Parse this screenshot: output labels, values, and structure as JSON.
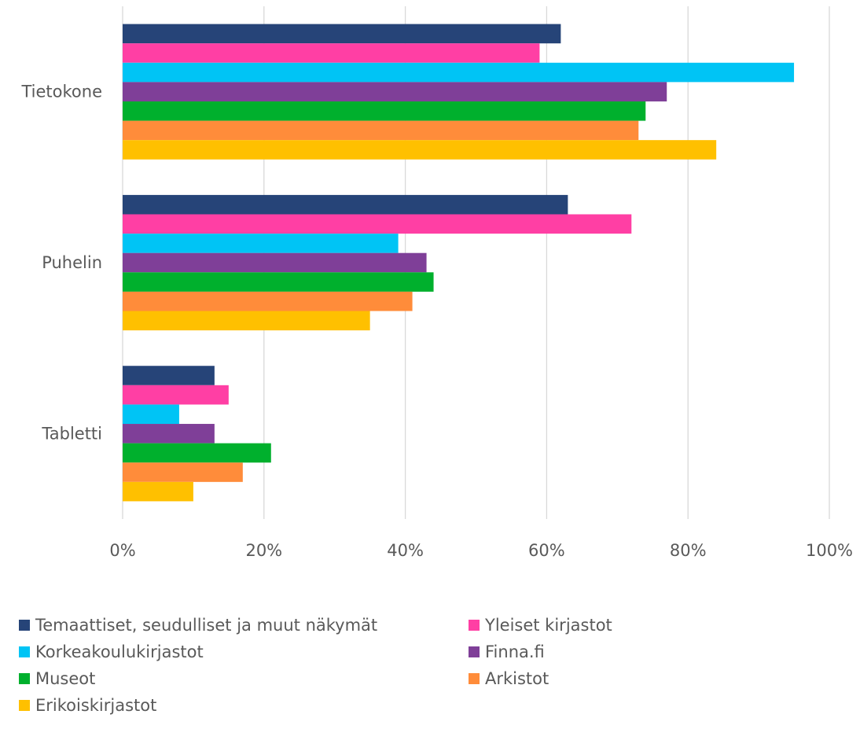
{
  "chart_data": {
    "type": "bar",
    "orientation": "horizontal",
    "categories": [
      "Tietokone",
      "Puhelin",
      "Tabletti"
    ],
    "series": [
      {
        "name": "Temaattiset, seudulliset ja muut näkymät",
        "color": "#264478",
        "values": [
          62,
          63,
          13
        ]
      },
      {
        "name": "Yleiset kirjastot",
        "color": "#FF3FA4",
        "values": [
          59,
          72,
          15
        ]
      },
      {
        "name": "Korkeakoulukirjastot",
        "color": "#00C4F5",
        "values": [
          95,
          39,
          8
        ]
      },
      {
        "name": "Finna.fi",
        "color": "#7F3F98",
        "values": [
          77,
          43,
          13
        ]
      },
      {
        "name": "Museot",
        "color": "#00B02D",
        "values": [
          74,
          44,
          21
        ]
      },
      {
        "name": "Arkistot",
        "color": "#FF8C3A",
        "values": [
          73,
          41,
          17
        ]
      },
      {
        "name": "Erikoiskirjastot",
        "color": "#FFC000",
        "values": [
          84,
          35,
          10
        ]
      }
    ],
    "xlim": [
      0,
      100
    ],
    "xticks": [
      "0%",
      "20%",
      "40%",
      "60%",
      "80%",
      "100%"
    ],
    "grid": true,
    "legend_position": "bottom"
  }
}
